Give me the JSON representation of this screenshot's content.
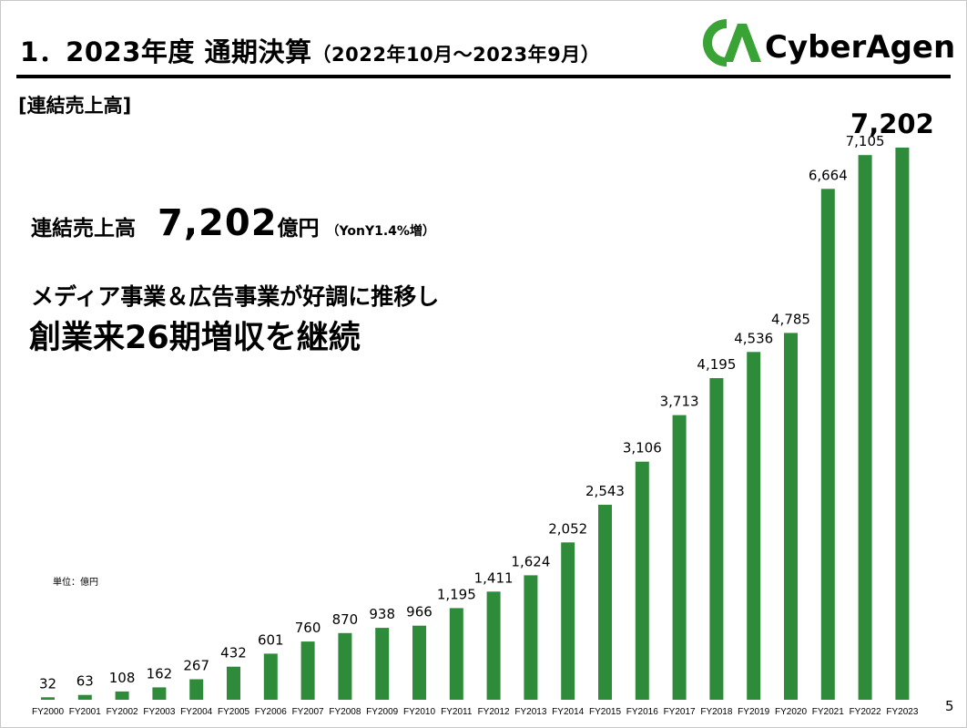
{
  "header": {
    "title_main": "1．2023年度 通期決算",
    "title_sub": "（2022年10月～2023年9月）",
    "logo_text": "CyberAgent"
  },
  "section_label": "[連結売上高]",
  "kpi": {
    "label": "連結売上高",
    "value": "7,202",
    "unit": "億円",
    "yoy": "（YonY1.4%増）"
  },
  "tagline_1": "メディア事業＆広告事業が好調に推移し",
  "tagline_2": "創業来26期増収を継続",
  "unit_note": "単位：億円",
  "page_number": "5",
  "colors": {
    "bar": "#2e8b3a",
    "logo_green": "#3aa335"
  },
  "chart_data": {
    "type": "bar",
    "title": "",
    "xlabel": "",
    "ylabel": "",
    "ylim": [
      0,
      7202
    ],
    "grid": false,
    "categories": [
      "FY2000",
      "FY2001",
      "FY2002",
      "FY2003",
      "FY2004",
      "FY2005",
      "FY2006",
      "FY2007",
      "FY2008",
      "FY2009",
      "FY2010",
      "FY2011",
      "FY2012",
      "FY2013",
      "FY2014",
      "FY2015",
      "FY2016",
      "FY2017",
      "FY2018",
      "FY2019",
      "FY2020",
      "FY2021",
      "FY2022",
      "FY2023"
    ],
    "values": [
      32,
      63,
      108,
      162,
      267,
      432,
      601,
      760,
      870,
      938,
      966,
      1195,
      1411,
      1624,
      2052,
      2543,
      3106,
      3713,
      4195,
      4536,
      4785,
      6664,
      7105,
      7202
    ],
    "value_labels": [
      "32",
      "63",
      "108",
      "162",
      "267",
      "432",
      "601",
      "760",
      "870",
      "938",
      "966",
      "1,195",
      "1,411",
      "1,624",
      "2,052",
      "2,543",
      "3,106",
      "3,713",
      "4,195",
      "4,536",
      "4,785",
      "6,664",
      "7,105",
      "7,202"
    ]
  }
}
